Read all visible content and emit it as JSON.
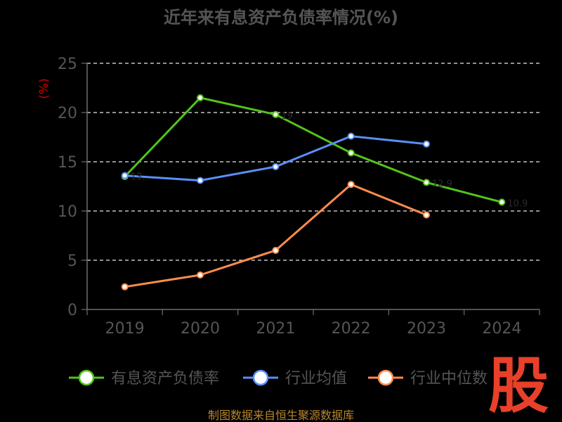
{
  "colors": {
    "background": "#000000",
    "title": "#555555",
    "axis": "#6e6e6e",
    "tick_label": "#555555",
    "grid": "#e8e8e8",
    "unit_label": "#cc0000",
    "source": "#b8862b",
    "watermark": "#e8402a"
  },
  "chart_data": {
    "type": "line",
    "title": "近年来有息资产负债率情况(%)",
    "ylabel": "(%)",
    "xlabel": "",
    "categories": [
      "2019",
      "2020",
      "2021",
      "2022",
      "2023",
      "2024"
    ],
    "ylim": [
      0,
      25
    ],
    "yticks": [
      "0",
      "5",
      "10",
      "15",
      "20",
      "25"
    ],
    "grid": "horizontal dashed",
    "legend_position": "bottom",
    "series": [
      {
        "name": "有息资产负债率",
        "color": "#52c41a",
        "values": [
          13.5,
          21.5,
          19.8,
          15.9,
          12.9,
          10.9
        ],
        "point_labels": [
          "",
          "",
          "19.",
          "",
          "12.9",
          "10.9"
        ]
      },
      {
        "name": "行业均值",
        "color": "#5b8ff9",
        "values": [
          13.6,
          13.1,
          14.5,
          17.6,
          16.8,
          null
        ],
        "point_labels": [
          "13.",
          "",
          "",
          "",
          "",
          ""
        ]
      },
      {
        "name": "行业中位数",
        "color": "#ff8c4d",
        "values": [
          2.3,
          3.5,
          6.0,
          12.7,
          9.6,
          null
        ],
        "point_labels": [
          "",
          "",
          "",
          "",
          "",
          ""
        ]
      }
    ],
    "source_text": "制图数据来自恒生聚源数据库",
    "watermark_text": "股"
  }
}
